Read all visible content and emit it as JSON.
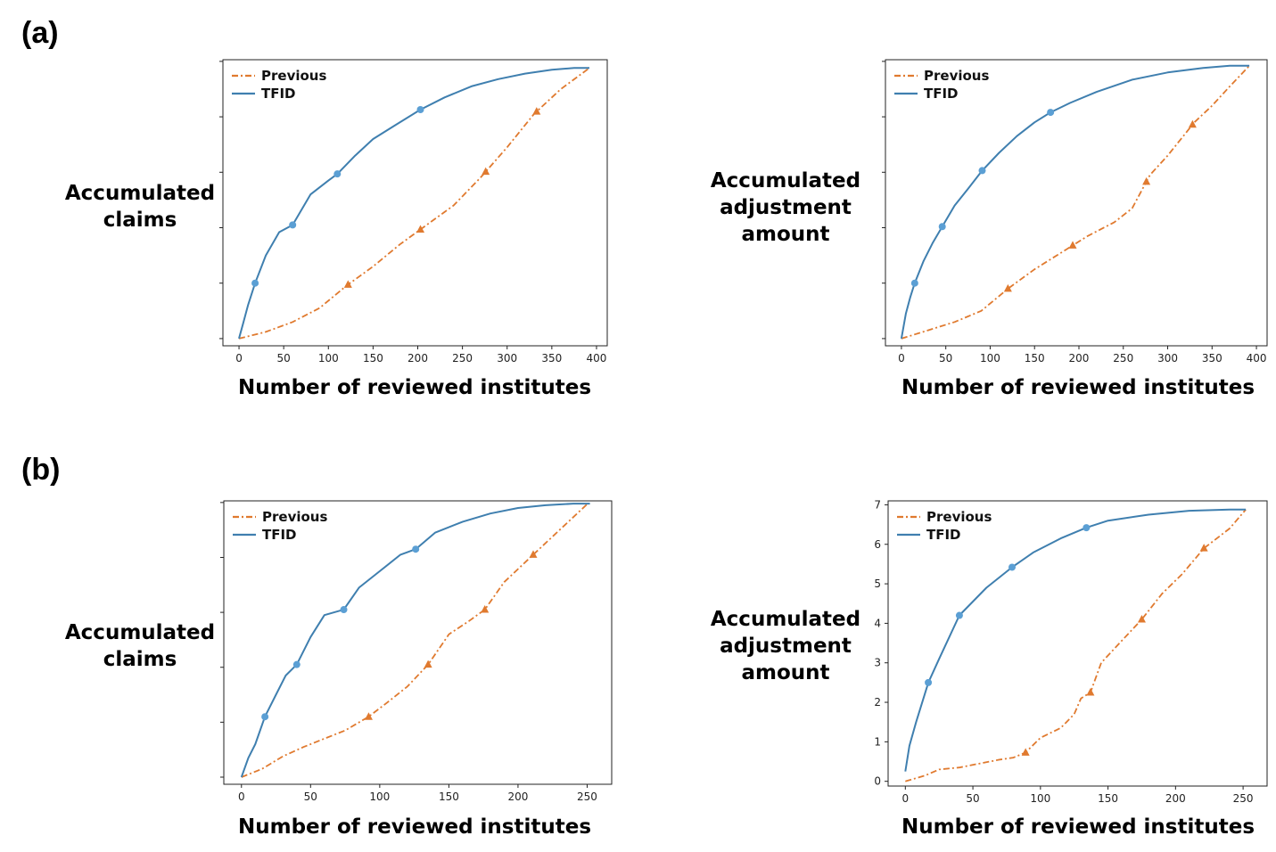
{
  "panels": [
    {
      "label": "(a)"
    },
    {
      "label": "(b)"
    }
  ],
  "colors": {
    "previous": "#e07a2f",
    "tfid": "#3f7faf",
    "tfid_marker": "#5b9fd4",
    "previous_marker": "#e07a2f"
  },
  "chart_data": [
    {
      "type": "line",
      "panel": "(a)",
      "ylabel": [
        "Accumulated",
        "claims"
      ],
      "xlabel": "Number of reviewed institutes",
      "xlim": [
        -18,
        412
      ],
      "ylim": [
        -0.13,
        5.03
      ],
      "xticks": [
        0,
        50,
        100,
        150,
        200,
        250,
        300,
        350,
        400
      ],
      "yticks": [
        0,
        1,
        2,
        3,
        4,
        5
      ],
      "show_ytick_labels": false,
      "legend": "top-left",
      "series": [
        {
          "name": "Previous",
          "style": "dashdot",
          "marker": "triangle",
          "markers_at": [
            122,
            203,
            276,
            333
          ],
          "x": [
            0,
            30,
            60,
            90,
            120,
            150,
            180,
            210,
            240,
            270,
            300,
            330,
            360,
            392
          ],
          "y": [
            0,
            0.12,
            0.3,
            0.55,
            0.95,
            1.3,
            1.7,
            2.05,
            2.4,
            2.9,
            3.45,
            4.05,
            4.5,
            4.88
          ]
        },
        {
          "name": "TFID",
          "style": "solid",
          "marker": "circle",
          "markers_at": [
            18,
            60,
            110,
            203
          ],
          "x": [
            0,
            5,
            10,
            18,
            30,
            45,
            60,
            80,
            100,
            110,
            130,
            150,
            175,
            203,
            230,
            260,
            290,
            320,
            350,
            375,
            392
          ],
          "y": [
            0,
            0.3,
            0.6,
            1.0,
            1.5,
            1.92,
            2.05,
            2.6,
            2.85,
            2.97,
            3.3,
            3.6,
            3.85,
            4.13,
            4.35,
            4.55,
            4.68,
            4.78,
            4.85,
            4.88,
            4.88
          ]
        }
      ]
    },
    {
      "type": "line",
      "panel": "(a)",
      "ylabel": [
        "Accumulated",
        "adjustment",
        "amount"
      ],
      "xlabel": "Number of reviewed institutes",
      "xlim": [
        -18,
        412
      ],
      "ylim": [
        -0.13,
        5.03
      ],
      "xticks": [
        0,
        50,
        100,
        150,
        200,
        250,
        300,
        350,
        400
      ],
      "yticks": [
        0,
        1,
        2,
        3,
        4,
        5
      ],
      "show_ytick_labels": false,
      "legend": "top-left",
      "series": [
        {
          "name": "Previous",
          "style": "dashdot",
          "marker": "triangle",
          "markers_at": [
            120,
            193,
            276,
            328
          ],
          "x": [
            0,
            30,
            60,
            90,
            120,
            150,
            180,
            210,
            240,
            260,
            280,
            300,
            330,
            350,
            370,
            392
          ],
          "y": [
            0,
            0.15,
            0.3,
            0.5,
            0.9,
            1.25,
            1.55,
            1.85,
            2.1,
            2.35,
            2.95,
            3.3,
            3.9,
            4.2,
            4.55,
            4.92
          ]
        },
        {
          "name": "TFID",
          "style": "solid",
          "marker": "circle",
          "markers_at": [
            15,
            46,
            91,
            168
          ],
          "x": [
            0,
            5,
            10,
            15,
            25,
            35,
            46,
            60,
            75,
            91,
            110,
            130,
            150,
            168,
            190,
            220,
            260,
            300,
            340,
            370,
            392
          ],
          "y": [
            0,
            0.45,
            0.75,
            1.0,
            1.4,
            1.72,
            2.02,
            2.4,
            2.7,
            3.03,
            3.35,
            3.65,
            3.9,
            4.08,
            4.25,
            4.45,
            4.67,
            4.8,
            4.88,
            4.92,
            4.92
          ]
        }
      ]
    },
    {
      "type": "line",
      "panel": "(b)",
      "ylabel": [
        "Accumulated",
        "claims"
      ],
      "xlabel": "Number of reviewed institutes",
      "xlim": [
        -12.75,
        267.75
      ],
      "ylim": [
        -0.13,
        5.03
      ],
      "xticks": [
        0,
        50,
        100,
        150,
        200,
        250
      ],
      "yticks": [
        0,
        1,
        2,
        3,
        4,
        5
      ],
      "show_ytick_labels": false,
      "legend": "top-left",
      "series": [
        {
          "name": "Previous",
          "style": "dashdot",
          "marker": "triangle",
          "markers_at": [
            92,
            135,
            176,
            211
          ],
          "x": [
            0,
            15,
            30,
            45,
            60,
            75,
            92,
            105,
            120,
            135,
            150,
            165,
            176,
            190,
            211,
            230,
            250
          ],
          "y": [
            0,
            0.15,
            0.38,
            0.55,
            0.7,
            0.85,
            1.1,
            1.35,
            1.65,
            2.05,
            2.6,
            2.85,
            3.05,
            3.55,
            4.05,
            4.5,
            4.97
          ]
        },
        {
          "name": "TFID",
          "style": "solid",
          "marker": "circle",
          "markers_at": [
            17,
            40,
            74,
            126
          ],
          "x": [
            0,
            5,
            10,
            17,
            25,
            32,
            40,
            50,
            60,
            74,
            85,
            100,
            115,
            126,
            140,
            160,
            180,
            200,
            220,
            240,
            252
          ],
          "y": [
            0,
            0.35,
            0.6,
            1.1,
            1.5,
            1.85,
            2.05,
            2.55,
            2.95,
            3.05,
            3.45,
            3.75,
            4.05,
            4.15,
            4.45,
            4.65,
            4.8,
            4.9,
            4.95,
            4.98,
            4.98
          ]
        }
      ]
    },
    {
      "type": "line",
      "panel": "(b)",
      "ylabel": [
        "Accumulated",
        "adjustment",
        "amount"
      ],
      "xlabel": "Number of reviewed institutes",
      "xlim": [
        -12.75,
        267.75
      ],
      "ylim": [
        -0.12,
        7.1
      ],
      "xticks": [
        0,
        50,
        100,
        150,
        200,
        250
      ],
      "yticks": [
        0,
        1,
        2,
        3,
        4,
        5,
        6,
        7
      ],
      "show_ytick_labels": true,
      "legend": "top-left",
      "series": [
        {
          "name": "Previous",
          "style": "dashdot",
          "marker": "triangle",
          "markers_at": [
            89,
            137,
            175,
            221
          ],
          "x": [
            0,
            15,
            25,
            40,
            55,
            70,
            80,
            89,
            100,
            115,
            125,
            130,
            137,
            145,
            160,
            175,
            190,
            205,
            221,
            240,
            252
          ],
          "y": [
            0,
            0.15,
            0.3,
            0.35,
            0.45,
            0.55,
            0.6,
            0.73,
            1.1,
            1.35,
            1.7,
            2.1,
            2.25,
            3.0,
            3.55,
            4.1,
            4.75,
            5.25,
            5.9,
            6.4,
            6.88
          ]
        },
        {
          "name": "TFID",
          "style": "solid",
          "marker": "circle",
          "markers_at": [
            17,
            40,
            79,
            134
          ],
          "x": [
            0,
            3,
            8,
            17,
            25,
            40,
            60,
            79,
            95,
            115,
            134,
            150,
            180,
            210,
            240,
            252
          ],
          "y": [
            0.25,
            0.9,
            1.5,
            2.5,
            3.1,
            4.2,
            4.9,
            5.42,
            5.8,
            6.15,
            6.42,
            6.6,
            6.75,
            6.85,
            6.88,
            6.88
          ]
        }
      ]
    }
  ]
}
